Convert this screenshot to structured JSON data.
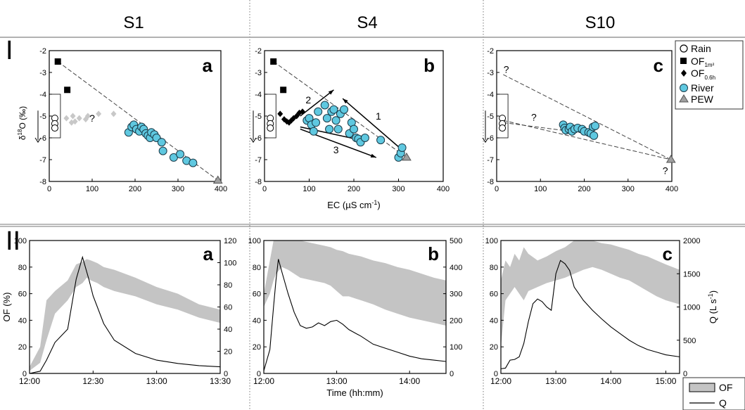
{
  "columns": [
    "S1",
    "S4",
    "S10"
  ],
  "row_labels": [
    "I",
    "II"
  ],
  "icons": {
    "rain": "open-circle",
    "of_1m2": "filled-square",
    "of_06h": "filled-diamond",
    "river": "cyan-circle",
    "pew": "grey-triangle"
  },
  "colors": {
    "river": "#5fc8e0",
    "pew": "#a0a0a0",
    "band": "#c4c4c4",
    "diamond_s1": "#c8c8c8",
    "line": "#000000"
  },
  "legend_top": [
    {
      "key": "rain",
      "label": "Rain",
      "sub": ""
    },
    {
      "key": "of1",
      "label": "OF",
      "sub": "1m²"
    },
    {
      "key": "of06",
      "label": "OF",
      "sub": "0.6h"
    },
    {
      "key": "river",
      "label": "River",
      "sub": ""
    },
    {
      "key": "pew",
      "label": "PEW",
      "sub": ""
    }
  ],
  "legend_bottom": [
    {
      "key": "of",
      "label": "OF"
    },
    {
      "key": "q",
      "label": "Q"
    }
  ],
  "chart_data": [
    {
      "id": "I-a",
      "type": "scatter",
      "panel_letter": "a",
      "xlim": [
        0,
        400
      ],
      "ylim": [
        -8,
        -2
      ],
      "xticks": [
        0,
        100,
        200,
        300,
        400
      ],
      "yticks": [
        -8,
        -7,
        -6,
        -5,
        -4,
        -3,
        -2
      ],
      "ylabel": "δ18O (‰)",
      "xlabel": "",
      "series": [
        {
          "name": "OF1m²",
          "marker": "square",
          "points": [
            [
              20,
              -2.5
            ],
            [
              42,
              -3.8
            ]
          ]
        },
        {
          "name": "OF0.6h",
          "marker": "diamond",
          "color": "#c8c8c8",
          "points": [
            [
              40,
              -5.1
            ],
            [
              52,
              -5.3
            ],
            [
              60,
              -5.25
            ],
            [
              70,
              -5.1
            ],
            [
              85,
              -5.15
            ],
            [
              90,
              -5.0
            ],
            [
              115,
              -4.9
            ],
            [
              150,
              -4.9
            ],
            [
              55,
              -5.0
            ]
          ]
        },
        {
          "name": "River",
          "marker": "circle",
          "points": [
            [
              185,
              -5.75
            ],
            [
              192,
              -5.5
            ],
            [
              197,
              -5.4
            ],
            [
              203,
              -5.6
            ],
            [
              210,
              -5.7
            ],
            [
              215,
              -5.5
            ],
            [
              220,
              -5.6
            ],
            [
              225,
              -5.8
            ],
            [
              230,
              -5.9
            ],
            [
              235,
              -6.0
            ],
            [
              238,
              -5.75
            ],
            [
              245,
              -5.85
            ],
            [
              250,
              -6.0
            ],
            [
              262,
              -6.2
            ],
            [
              265,
              -6.6
            ],
            [
              290,
              -6.9
            ],
            [
              305,
              -6.75
            ],
            [
              320,
              -7.05
            ],
            [
              335,
              -7.15
            ]
          ]
        },
        {
          "name": "Rain",
          "marker": "open-circle",
          "points": [
            [
              13,
              -5.1
            ],
            [
              13,
              -5.35
            ],
            [
              13,
              -5.55
            ]
          ]
        },
        {
          "name": "PEW",
          "marker": "triangle",
          "points": [
            [
              393,
              -7.95
            ]
          ]
        }
      ],
      "lines": [
        {
          "from": [
            20,
            -2.5
          ],
          "to": [
            393,
            -7.95
          ],
          "style": "dashed"
        }
      ],
      "annotations": [
        {
          "text": "?",
          "at": [
            100,
            -5.1
          ]
        }
      ]
    },
    {
      "id": "I-b",
      "type": "scatter",
      "panel_letter": "b",
      "xlim": [
        0,
        400
      ],
      "ylim": [
        -8,
        -2
      ],
      "xticks": [
        0,
        100,
        200,
        300,
        400
      ],
      "yticks": [
        -8,
        -7,
        -6,
        -5,
        -4,
        -3,
        -2
      ],
      "xlabel": "EC (µS cm-1)",
      "ylabel": "",
      "series": [
        {
          "name": "OF1m²",
          "marker": "square",
          "points": [
            [
              20,
              -2.5
            ],
            [
              42,
              -3.8
            ]
          ]
        },
        {
          "name": "OF0.6h",
          "marker": "diamond",
          "points": [
            [
              35,
              -4.9
            ],
            [
              44,
              -5.15
            ],
            [
              50,
              -5.25
            ],
            [
              55,
              -5.3
            ],
            [
              60,
              -5.2
            ],
            [
              65,
              -5.1
            ],
            [
              72,
              -5.0
            ],
            [
              78,
              -4.85
            ],
            [
              85,
              -4.8
            ]
          ]
        },
        {
          "name": "River",
          "marker": "circle",
          "points": [
            [
              95,
              -5.2
            ],
            [
              100,
              -5.1
            ],
            [
              105,
              -5.4
            ],
            [
              110,
              -5.7
            ],
            [
              115,
              -5.3
            ],
            [
              120,
              -4.8
            ],
            [
              135,
              -4.5
            ],
            [
              140,
              -5.1
            ],
            [
              145,
              -5.6
            ],
            [
              150,
              -4.8
            ],
            [
              155,
              -4.7
            ],
            [
              160,
              -5.2
            ],
            [
              165,
              -5.6
            ],
            [
              170,
              -4.9
            ],
            [
              178,
              -4.7
            ],
            [
              190,
              -5.8
            ],
            [
              195,
              -5.3
            ],
            [
              200,
              -5.6
            ],
            [
              205,
              -6.0
            ],
            [
              210,
              -6.05
            ],
            [
              215,
              -6.2
            ],
            [
              225,
              -6.0
            ],
            [
              260,
              -6.1
            ],
            [
              300,
              -6.9
            ],
            [
              305,
              -6.7
            ],
            [
              308,
              -6.45
            ]
          ]
        },
        {
          "name": "Rain",
          "marker": "open-circle",
          "points": [
            [
              13,
              -5.1
            ],
            [
              13,
              -5.35
            ],
            [
              13,
              -5.55
            ]
          ]
        },
        {
          "name": "PEW",
          "marker": "triangle",
          "points": [
            [
              318,
              -6.9
            ]
          ]
        }
      ],
      "lines": [
        {
          "from": [
            20,
            -2.5
          ],
          "to": [
            318,
            -6.9
          ],
          "style": "dashed"
        }
      ],
      "arrows": [
        {
          "from": [
            305,
            -6.5
          ],
          "to": [
            175,
            -4.2
          ]
        },
        {
          "from": [
            80,
            -5.0
          ],
          "to": [
            155,
            -3.8
          ]
        },
        {
          "from": [
            80,
            -5.6
          ],
          "to": [
            250,
            -6.9
          ]
        },
        {
          "from": [
            80,
            -5.5
          ],
          "to": [
            215,
            -6.1
          ]
        }
      ],
      "annotations": [
        {
          "text": "1",
          "at": [
            255,
            -5.0
          ]
        },
        {
          "text": "2",
          "at": [
            98,
            -4.25
          ]
        },
        {
          "text": "3",
          "at": [
            160,
            -6.55
          ]
        }
      ]
    },
    {
      "id": "I-c",
      "type": "scatter",
      "panel_letter": "c",
      "xlim": [
        0,
        400
      ],
      "ylim": [
        -8,
        -2
      ],
      "xticks": [
        0,
        100,
        200,
        300,
        400
      ],
      "yticks": [
        -8,
        -7,
        -6,
        -5,
        -4,
        -3,
        -2
      ],
      "xlabel": "",
      "ylabel": "",
      "series": [
        {
          "name": "River",
          "marker": "circle",
          "points": [
            [
              152,
              -5.4
            ],
            [
              155,
              -5.55
            ],
            [
              158,
              -5.65
            ],
            [
              165,
              -5.6
            ],
            [
              168,
              -5.5
            ],
            [
              172,
              -5.7
            ],
            [
              178,
              -5.6
            ],
            [
              185,
              -5.55
            ],
            [
              195,
              -5.6
            ],
            [
              200,
              -5.7
            ],
            [
              210,
              -5.75
            ],
            [
              215,
              -5.8
            ],
            [
              220,
              -5.5
            ],
            [
              222,
              -5.9
            ],
            [
              225,
              -5.45
            ]
          ]
        },
        {
          "name": "Rain",
          "marker": "open-circle",
          "points": [
            [
              13,
              -5.1
            ],
            [
              13,
              -5.35
            ],
            [
              13,
              -5.55
            ]
          ]
        },
        {
          "name": "PEW",
          "marker": "triangle",
          "points": [
            [
              398,
              -7.0
            ]
          ]
        }
      ],
      "lines": [
        {
          "from": [
            15,
            -3.1
          ],
          "to": [
            398,
            -7.0
          ],
          "style": "dashed"
        },
        {
          "from": [
            15,
            -5.2
          ],
          "to": [
            398,
            -7.0
          ],
          "style": "dashed"
        },
        {
          "from": [
            15,
            -5.3
          ],
          "to": [
            225,
            -5.85
          ],
          "style": "dashed"
        }
      ],
      "annotations": [
        {
          "text": "?",
          "at": [
            22,
            -2.85
          ]
        },
        {
          "text": "?",
          "at": [
            85,
            -5.05
          ]
        },
        {
          "text": "?",
          "at": [
            385,
            -7.5
          ]
        }
      ]
    },
    {
      "id": "II-a",
      "type": "line",
      "panel_letter": "a",
      "xlim": [
        0,
        90
      ],
      "ylim": [
        0,
        100
      ],
      "y2lim": [
        0,
        120
      ],
      "xticks": [
        0,
        30,
        60,
        90
      ],
      "xtick_labels": [
        "12:00",
        "12:30",
        "13:00",
        "13:30"
      ],
      "yticks": [
        0,
        20,
        40,
        60,
        80,
        100
      ],
      "y2ticks": [
        0,
        20,
        40,
        60,
        80,
        100,
        120
      ],
      "ylabel": "OF (%)",
      "xlabel": "",
      "y2label": "",
      "of_band": {
        "x": [
          0,
          5,
          8,
          12,
          18,
          22,
          25,
          27,
          29,
          32,
          35,
          40,
          50,
          60,
          70,
          80,
          90
        ],
        "upper": [
          5,
          20,
          55,
          62,
          70,
          82,
          84,
          86,
          85,
          83,
          80,
          78,
          72,
          65,
          60,
          52,
          48
        ],
        "lower": [
          2,
          8,
          25,
          45,
          55,
          65,
          68,
          72,
          70,
          68,
          65,
          62,
          58,
          52,
          48,
          42,
          38
        ]
      },
      "q": {
        "x": [
          0,
          5,
          8,
          12,
          18,
          22,
          25,
          28,
          30,
          35,
          40,
          50,
          60,
          70,
          80,
          90
        ],
        "values": [
          0,
          2,
          12,
          28,
          40,
          85,
          105,
          85,
          70,
          45,
          30,
          18,
          12,
          9,
          7,
          6
        ]
      }
    },
    {
      "id": "II-b",
      "type": "line",
      "panel_letter": "b",
      "xlim": [
        0,
        150
      ],
      "ylim": [
        0,
        100
      ],
      "y2lim": [
        0,
        500
      ],
      "xticks": [
        0,
        60,
        120
      ],
      "xtick_labels": [
        "12:00",
        "13:00",
        "14:00"
      ],
      "yticks": [
        0,
        20,
        40,
        60,
        80,
        100
      ],
      "y2ticks": [
        0,
        100,
        200,
        300,
        400,
        500
      ],
      "ylabel": "",
      "xlabel": "Time (hh:mm)",
      "y2label": "",
      "of_band": {
        "x": [
          0,
          5,
          8,
          10,
          15,
          20,
          30,
          40,
          50,
          55,
          60,
          65,
          70,
          80,
          90,
          100,
          110,
          120,
          130,
          140,
          150
        ],
        "upper": [
          60,
          85,
          100,
          100,
          100,
          100,
          100,
          98,
          96,
          95,
          93,
          92,
          90,
          88,
          85,
          83,
          80,
          78,
          75,
          72,
          70
        ],
        "lower": [
          50,
          60,
          70,
          75,
          80,
          78,
          72,
          70,
          68,
          66,
          62,
          58,
          58,
          55,
          52,
          48,
          45,
          42,
          40,
          38,
          36
        ]
      },
      "q": {
        "x": [
          0,
          5,
          8,
          10,
          12,
          15,
          20,
          25,
          30,
          35,
          40,
          45,
          50,
          55,
          60,
          65,
          70,
          80,
          90,
          100,
          110,
          120,
          130,
          140,
          150
        ],
        "values": [
          10,
          90,
          250,
          350,
          430,
          380,
          300,
          230,
          180,
          170,
          175,
          190,
          180,
          195,
          200,
          185,
          165,
          140,
          110,
          95,
          80,
          65,
          55,
          50,
          45
        ]
      }
    },
    {
      "id": "II-c",
      "type": "line",
      "panel_letter": "c",
      "xlim": [
        0,
        195
      ],
      "ylim": [
        0,
        100
      ],
      "y2lim": [
        0,
        2000
      ],
      "xticks": [
        0,
        60,
        120,
        180
      ],
      "xtick_labels": [
        "12:00",
        "13:00",
        "14:00",
        "15:00"
      ],
      "yticks": [
        0,
        20,
        40,
        60,
        80,
        100
      ],
      "y2ticks": [
        0,
        500,
        1000,
        1500,
        2000
      ],
      "ylabel": "",
      "xlabel": "",
      "y2label": "Q (L s-1)",
      "of_band": {
        "x": [
          0,
          5,
          10,
          15,
          20,
          25,
          30,
          40,
          50,
          60,
          70,
          80,
          90,
          100,
          110,
          120,
          130,
          140,
          150,
          160,
          170,
          180,
          195
        ],
        "upper": [
          70,
          85,
          80,
          90,
          85,
          95,
          90,
          85,
          88,
          92,
          95,
          100,
          100,
          100,
          98,
          97,
          95,
          93,
          90,
          88,
          85,
          82,
          78
        ],
        "lower": [
          20,
          55,
          60,
          65,
          60,
          55,
          62,
          65,
          68,
          70,
          72,
          75,
          78,
          80,
          78,
          75,
          72,
          70,
          66,
          62,
          58,
          55,
          52
        ]
      },
      "q": {
        "x": [
          0,
          5,
          10,
          15,
          20,
          25,
          30,
          35,
          40,
          45,
          50,
          55,
          60,
          65,
          70,
          75,
          80,
          85,
          90,
          100,
          110,
          120,
          130,
          140,
          150,
          160,
          170,
          180,
          195
        ],
        "values": [
          70,
          80,
          200,
          210,
          250,
          450,
          780,
          1050,
          1120,
          1080,
          1000,
          950,
          1500,
          1700,
          1650,
          1550,
          1300,
          1200,
          1100,
          950,
          820,
          700,
          600,
          500,
          420,
          360,
          320,
          280,
          250
        ]
      }
    }
  ]
}
